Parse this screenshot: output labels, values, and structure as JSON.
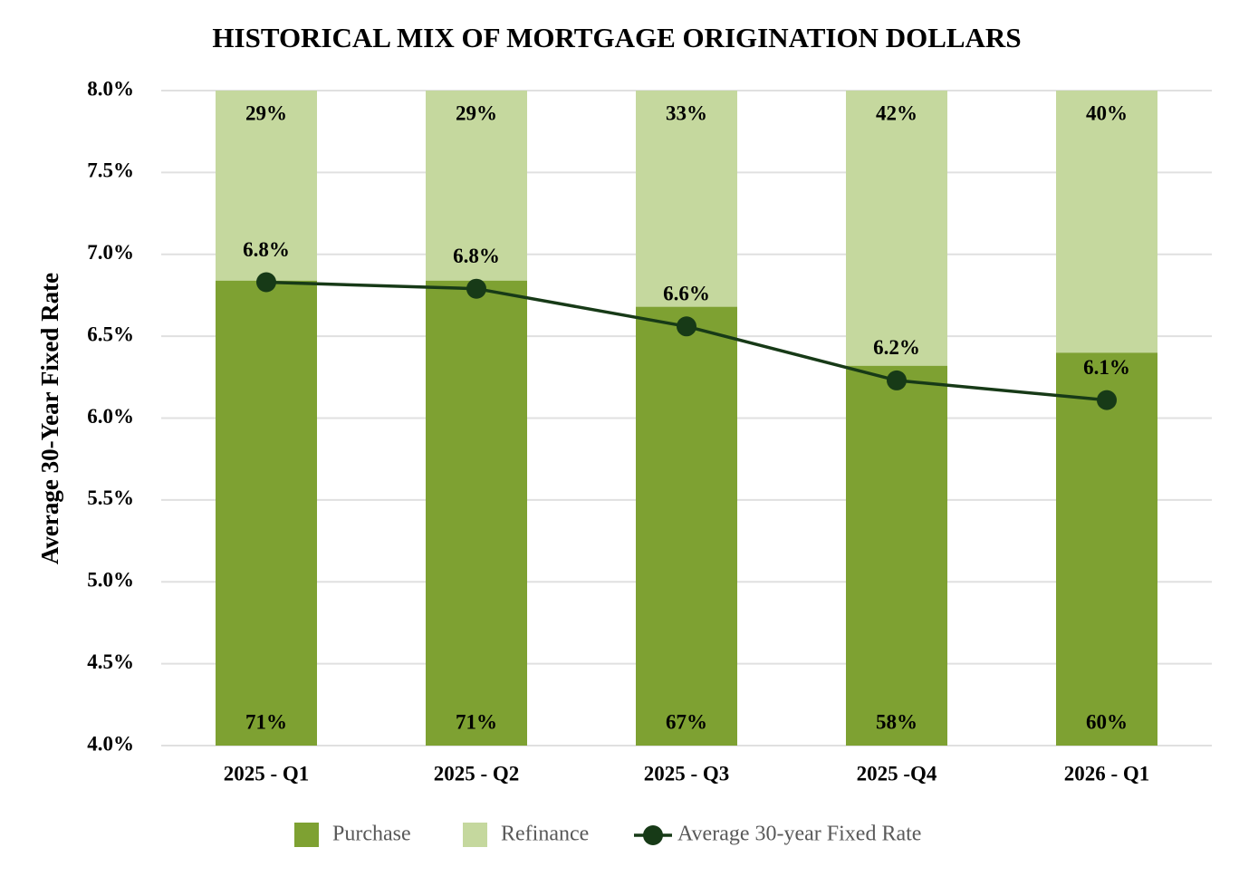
{
  "chart_data": {
    "type": "combo",
    "title": "HISTORICAL MIX OF MORTGAGE ORIGINATION DOLLARS",
    "y_label": "Average  30-Year Fixed Rate",
    "categories": [
      "2025 - Q1",
      "2025 - Q2",
      "2025 - Q3",
      "2025 -Q4",
      "2026 - Q1"
    ],
    "ylim": [
      4,
      8
    ],
    "yticks": [
      {
        "value": 4,
        "label": "4.0%"
      },
      {
        "value": 4.5,
        "label": "4.5%"
      },
      {
        "value": 5,
        "label": "5.0%"
      },
      {
        "value": 5.5,
        "label": "5.5%"
      },
      {
        "value": 6,
        "label": "6.0%"
      },
      {
        "value": 6.5,
        "label": "6.5%"
      },
      {
        "value": 7,
        "label": "7.0%"
      },
      {
        "value": 7.5,
        "label": "7.5%"
      },
      {
        "value": 8,
        "label": "8.0%"
      }
    ],
    "y2lim": [
      0,
      100
    ],
    "grid": true,
    "legend": "bottom",
    "series": [
      {
        "name": "Purchase",
        "type": "bar",
        "axis": "y2",
        "color": "#7ea132",
        "values": [
          71,
          71,
          67,
          58,
          60
        ],
        "value_labels": [
          "71%",
          "71%",
          "67%",
          "58%",
          "60%"
        ]
      },
      {
        "name": "Refinance",
        "type": "bar",
        "axis": "y2",
        "color": "#c5d89e",
        "values": [
          29,
          29,
          33,
          42,
          40
        ],
        "value_labels": [
          "29%",
          "29%",
          "33%",
          "42%",
          "40%"
        ]
      },
      {
        "name": "Average 30-year Fixed Rate",
        "type": "line",
        "color": "#173a17",
        "values": [
          6.83,
          6.79,
          6.56,
          6.23,
          6.11
        ],
        "value_labels": [
          "6.8%",
          "6.8%",
          "6.6%",
          "6.2%",
          "6.1%"
        ]
      }
    ]
  }
}
